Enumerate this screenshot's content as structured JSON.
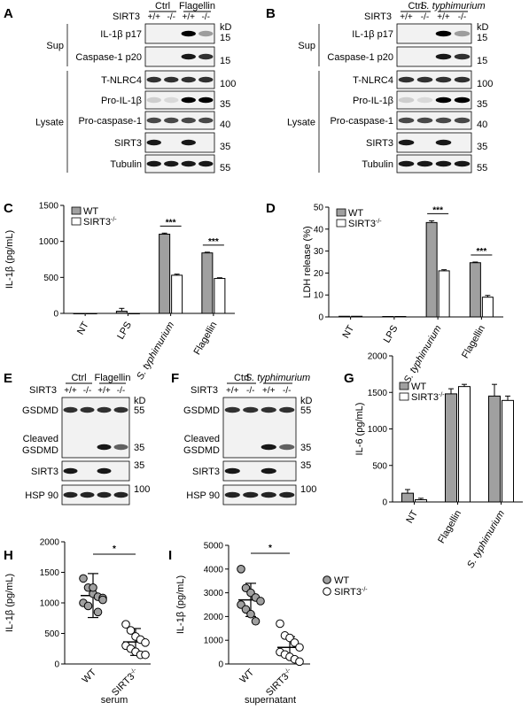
{
  "panels": {
    "A": {
      "letter": "A",
      "genotype_label": "SIRT3",
      "groups": [
        "Ctrl",
        "Flagellin"
      ],
      "genotypes": [
        "+/+",
        "-/-",
        "+/+",
        "-/-"
      ],
      "kd_label": "kD",
      "section_labels": [
        "Sup",
        "Lysate"
      ],
      "bands": [
        {
          "name": "IL-1β p17",
          "kd": "15"
        },
        {
          "name": "Caspase-1 p20",
          "kd": "15"
        },
        {
          "name": "T-NLRC4",
          "kd": "100"
        },
        {
          "name": "Pro-IL-1β",
          "kd": "35"
        },
        {
          "name": "Pro-caspase-1",
          "kd": "40"
        },
        {
          "name": "SIRT3",
          "kd": "35"
        },
        {
          "name": "Tubulin",
          "kd": "55"
        }
      ]
    },
    "B": {
      "letter": "B",
      "genotype_label": "SIRT3",
      "groups": [
        "Ctrl",
        "S. typhimurium"
      ],
      "genotypes": [
        "+/+",
        "-/-",
        "+/+",
        "-/-"
      ],
      "kd_label": "kD",
      "section_labels": [
        "Sup",
        "Lysate"
      ],
      "bands": [
        {
          "name": "IL-1β p17",
          "kd": "15"
        },
        {
          "name": "Caspase-1 p20",
          "kd": "15"
        },
        {
          "name": "T-NLRC4",
          "kd": "100"
        },
        {
          "name": "Pro-IL-1β",
          "kd": "35"
        },
        {
          "name": "Pro-caspase-1",
          "kd": "40"
        },
        {
          "name": "SIRT3",
          "kd": "35"
        },
        {
          "name": "Tubulin",
          "kd": "55"
        }
      ]
    },
    "E": {
      "letter": "E",
      "genotype_label": "SIRT3",
      "groups": [
        "Ctrl",
        "Flagellin"
      ],
      "genotypes": [
        "+/+",
        "-/-",
        "+/+",
        "-/-"
      ],
      "kd_label": "kD",
      "bands": [
        {
          "name": "GSDMD",
          "kd": "55"
        },
        {
          "name": "Cleaved GSDMD",
          "kd": "35"
        },
        {
          "name": "SIRT3",
          "kd": "35"
        },
        {
          "name": "HSP 90",
          "kd": "100"
        }
      ]
    },
    "F": {
      "letter": "F",
      "genotype_label": "SIRT3",
      "groups": [
        "Ctrl",
        "S. typhimurium"
      ],
      "genotypes": [
        "+/+",
        "-/-",
        "+/+",
        "-/-"
      ],
      "kd_label": "kD",
      "bands": [
        {
          "name": "GSDMD",
          "kd": "55"
        },
        {
          "name": "Cleaved GSDMD",
          "kd": "35"
        },
        {
          "name": "SIRT3",
          "kd": "35"
        },
        {
          "name": "HSP 90",
          "kd": "100"
        }
      ]
    },
    "C": {
      "letter": "C"
    },
    "D": {
      "letter": "D"
    },
    "G": {
      "letter": "G"
    },
    "H": {
      "letter": "H"
    },
    "I": {
      "letter": "I"
    }
  },
  "chart_data": [
    {
      "panel": "C",
      "type": "bar",
      "ylabel": "IL-1β (pg/mL)",
      "ylim": [
        0,
        1500
      ],
      "yticks": [
        0,
        500,
        1000,
        1500
      ],
      "categories": [
        "NT",
        "LPS",
        "S. typhimurium",
        "Flagellin"
      ],
      "series": [
        {
          "name": "WT",
          "color": "#a0a0a0",
          "values": [
            0,
            30,
            1100,
            840
          ],
          "errors": [
            0,
            40,
            15,
            10
          ]
        },
        {
          "name": "SIRT3-/-",
          "color": "#ffffff",
          "values": [
            0,
            0,
            530,
            485
          ],
          "errors": [
            0,
            0,
            15,
            10
          ]
        }
      ],
      "significance": [
        {
          "category": "S. typhimurium",
          "label": "***"
        },
        {
          "category": "Flagellin",
          "label": "***"
        }
      ]
    },
    {
      "panel": "D",
      "type": "bar",
      "ylabel": "LDH release (%)",
      "ylim": [
        0,
        50
      ],
      "yticks": [
        0,
        10,
        20,
        30,
        40,
        50
      ],
      "categories": [
        "NT",
        "LPS",
        "S. typhimurium",
        "Flagellin"
      ],
      "series": [
        {
          "name": "WT",
          "color": "#a0a0a0",
          "values": [
            0.3,
            0.2,
            43,
            24.7
          ],
          "errors": [
            0,
            0,
            0.8,
            0.3
          ]
        },
        {
          "name": "SIRT3-/-",
          "color": "#ffffff",
          "values": [
            0.3,
            0.2,
            21,
            9
          ],
          "errors": [
            0,
            0,
            0.5,
            0.8
          ]
        }
      ],
      "significance": [
        {
          "category": "S. typhimurium",
          "label": "***"
        },
        {
          "category": "Flagellin",
          "label": "***"
        }
      ]
    },
    {
      "panel": "G",
      "type": "bar",
      "ylabel": "IL-6 (pg/mL)",
      "ylim": [
        0,
        2000
      ],
      "yticks": [
        0,
        500,
        1000,
        1500,
        2000
      ],
      "categories": [
        "NT",
        "Flagellin",
        "S. typhimurium"
      ],
      "series": [
        {
          "name": "WT",
          "color": "#a0a0a0",
          "values": [
            120,
            1480,
            1450
          ],
          "errors": [
            50,
            70,
            160
          ]
        },
        {
          "name": "SIRT3-/-",
          "color": "#ffffff",
          "values": [
            30,
            1580,
            1390
          ],
          "errors": [
            20,
            30,
            60
          ]
        }
      ]
    },
    {
      "panel": "H",
      "type": "scatter",
      "ylabel": "IL-1β (pg/mL)",
      "xlabel": "serum",
      "ylim": [
        0,
        2000
      ],
      "yticks": [
        0,
        500,
        1000,
        1500,
        2000
      ],
      "categories": [
        "WT",
        "SIRT3-/-"
      ],
      "series": [
        {
          "name": "WT",
          "color": "#a0a0a0",
          "mean": 1120,
          "sd": 360,
          "values": [
            1400,
            1250,
            1150,
            1100,
            1080,
            1000,
            950,
            1250,
            850,
            1050
          ]
        },
        {
          "name": "SIRT3-/-",
          "color": "#ffffff",
          "mean": 360,
          "sd": 220,
          "values": [
            650,
            550,
            450,
            400,
            350,
            300,
            250,
            200,
            150,
            150
          ]
        }
      ],
      "significance": [
        {
          "label": "*"
        }
      ]
    },
    {
      "panel": "I",
      "type": "scatter",
      "ylabel": "IL-1β (pg/mL)",
      "xlabel": "supernatant",
      "ylim": [
        0,
        5000
      ],
      "yticks": [
        0,
        1000,
        2000,
        3000,
        4000,
        5000
      ],
      "categories": [
        "WT",
        "SIRT3-/-"
      ],
      "series": [
        {
          "name": "WT",
          "color": "#a0a0a0",
          "mean": 2700,
          "sd": 700,
          "values": [
            4000,
            3200,
            3000,
            2800,
            2650,
            2500,
            2300,
            2100,
            1800
          ]
        },
        {
          "name": "SIRT3-/-",
          "color": "#ffffff",
          "mean": 700,
          "sd": 450,
          "values": [
            1700,
            1200,
            1100,
            900,
            700,
            500,
            400,
            300,
            200,
            100
          ]
        }
      ],
      "significance": [
        {
          "label": "*"
        }
      ]
    }
  ],
  "legend_hi": {
    "entries": [
      {
        "name": "WT",
        "color": "#a0a0a0"
      },
      {
        "name": "SIRT3-/-",
        "color": "#ffffff"
      }
    ]
  }
}
